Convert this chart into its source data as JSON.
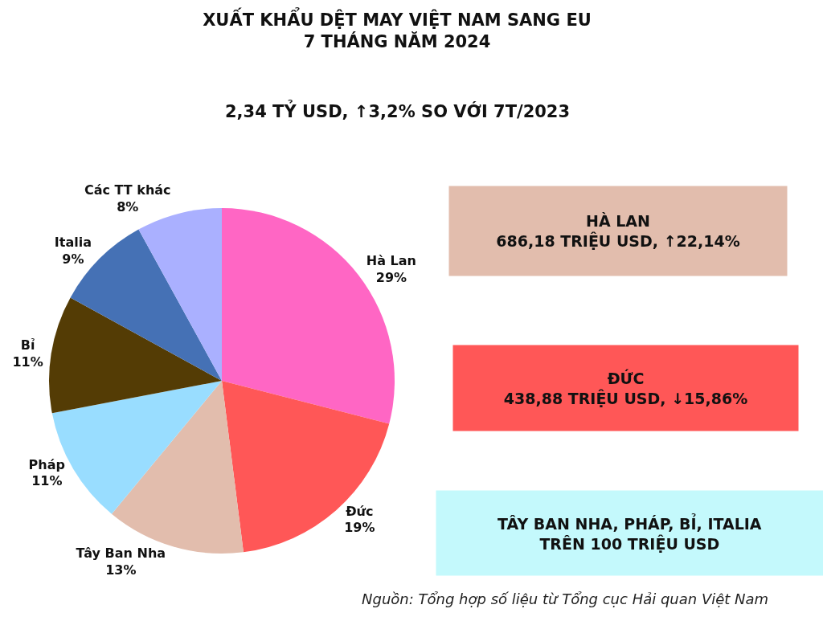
{
  "chart_data": {
    "type": "pie",
    "title": "XUẤT KHẨU DỆT MAY VIỆT NAM SANG EU\n7 THÁNG NĂM 2024",
    "subtitle": "2,34 TỶ USD, ↑3,2% SO VỚI 7T/2023",
    "categories": [
      "Hà Lan",
      "Đức",
      "Tây Ban Nha",
      "Pháp",
      "Bỉ",
      "Italia",
      "Các TT khác"
    ],
    "values": [
      29,
      19,
      13,
      11,
      11,
      9,
      8
    ],
    "colors": [
      "#ff66c4",
      "#ff5757",
      "#e2bdad",
      "#99ddff",
      "#543c05",
      "#4571b5",
      "#aab0ff"
    ],
    "value_labels": [
      "29%",
      "19%",
      "13%",
      "11%",
      "11%",
      "9%",
      "8%"
    ],
    "annotations": [
      "HÀ LAN\n686,18 TRIỆU USD, ↑22,14%",
      "ĐỨC\n438,88 TRIỆU USD, ↓15,86%",
      "TÂY BAN NHA, PHÁP, BỈ, ITALIA\nTRÊN 100 TRIỆU USD",
      "Nguồn: Tổng hợp số liệu từ Tổng cục Hải quan Việt Nam"
    ]
  }
}
